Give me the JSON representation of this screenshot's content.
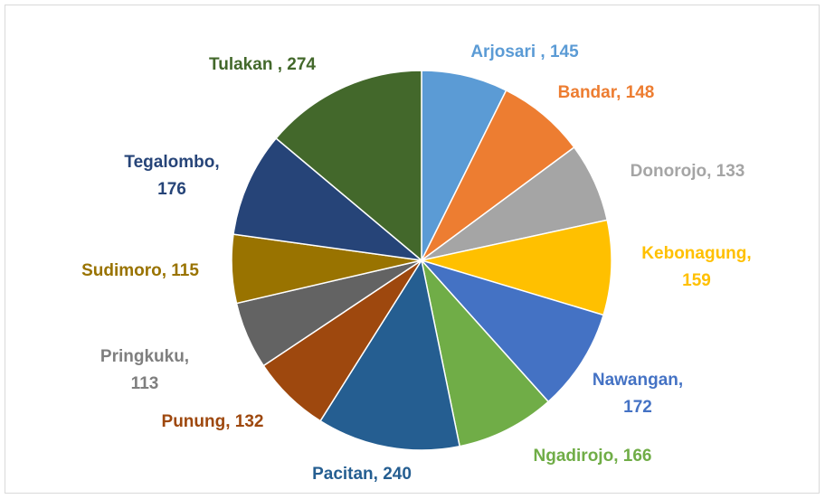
{
  "chart_data": {
    "type": "pie",
    "values": [
      145,
      148,
      133,
      159,
      172,
      166,
      240,
      132,
      113,
      115,
      176,
      274
    ],
    "value_labels": [
      "Arjosari , 145",
      "Bandar, 148",
      "Donorojo, 133",
      "Kebonagung,\n159",
      "Nawangan,\n172",
      "Ngadirojo, 166",
      "Pacitan, 240",
      "Punung, 132",
      "Pringkuku,\n113",
      "Sudimoro, 115",
      "Tegalombo,\n176",
      "Tulakan , 274"
    ],
    "colors": [
      "#5b9bd5",
      "#ed7d31",
      "#a5a5a5",
      "#ffc000",
      "#4472c4",
      "#70ad47",
      "#255e91",
      "#9e480e",
      "#636363",
      "#997300",
      "#264478",
      "#43682b"
    ],
    "label_colors": [
      "#5b9bd5",
      "#ed7d31",
      "#a5a5a5",
      "#ffc000",
      "#4472c4",
      "#70ad47",
      "#255e91",
      "#9e480e",
      "#7f7f7f",
      "#997300",
      "#264478",
      "#43682b"
    ]
  }
}
